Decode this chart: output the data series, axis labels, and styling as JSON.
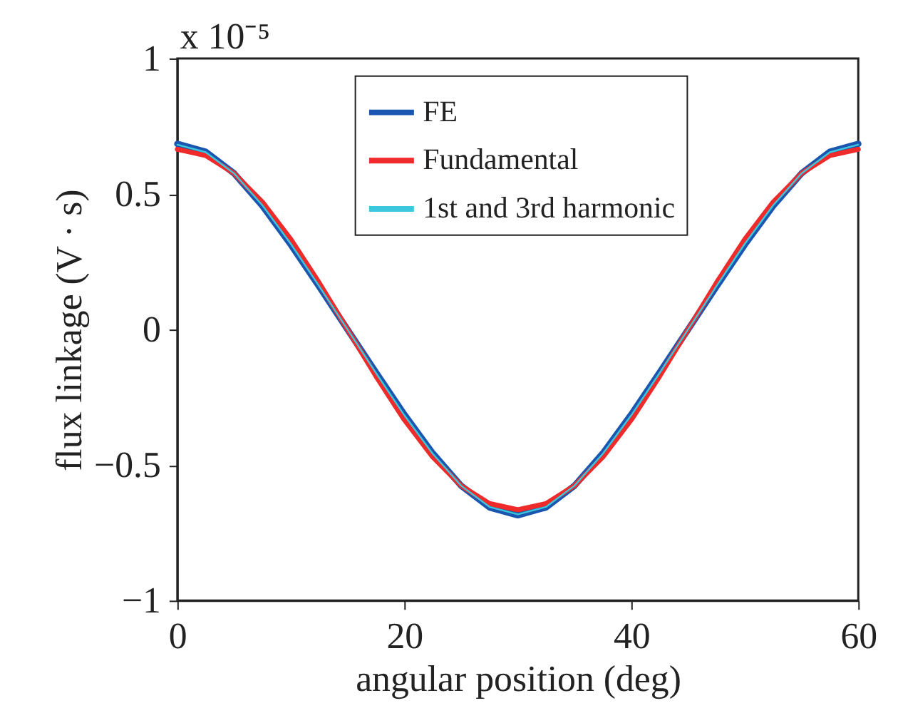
{
  "chart_data": {
    "type": "line",
    "xlabel": "angular position (deg)",
    "ylabel": "flux linkage (V · s)",
    "annotations": [
      "x 10⁻⁵"
    ],
    "x": [
      0,
      2.5,
      5,
      7.5,
      10,
      12.5,
      15,
      17.5,
      20,
      22.5,
      25,
      27.5,
      30,
      32.5,
      35,
      37.5,
      40,
      42.5,
      45,
      47.5,
      50,
      52.5,
      55,
      57.5,
      60
    ],
    "series": [
      {
        "name": "FE",
        "color": "#1a56b0",
        "values": [
          0.685,
          0.656,
          0.576,
          0.456,
          0.313,
          0.158,
          0,
          -0.158,
          -0.313,
          -0.456,
          -0.576,
          -0.656,
          -0.685,
          -0.656,
          -0.576,
          -0.456,
          -0.313,
          -0.158,
          0,
          0.158,
          0.313,
          0.456,
          0.576,
          0.656,
          0.685
        ]
      },
      {
        "name": "Fundamental",
        "color": "#ee2a2a",
        "values": [
          0.665,
          0.642,
          0.576,
          0.47,
          0.333,
          0.172,
          0,
          -0.172,
          -0.333,
          -0.47,
          -0.576,
          -0.642,
          -0.665,
          -0.642,
          -0.576,
          -0.47,
          -0.333,
          -0.172,
          0,
          0.172,
          0.333,
          0.47,
          0.576,
          0.642,
          0.665
        ]
      },
      {
        "name": "1st and 3rd harmonic",
        "color": "#3cc8dc",
        "values": [
          0.682,
          0.654,
          0.576,
          0.458,
          0.316,
          0.16,
          0,
          -0.16,
          -0.316,
          -0.458,
          -0.576,
          -0.654,
          -0.682,
          -0.654,
          -0.576,
          -0.458,
          -0.316,
          -0.16,
          0,
          0.16,
          0.316,
          0.458,
          0.576,
          0.654,
          0.682
        ]
      }
    ],
    "xlim": [
      0,
      60
    ],
    "xticks": [
      0,
      20,
      40,
      60
    ],
    "ylim": [
      -1,
      1
    ],
    "yticks": [
      -1,
      -0.5,
      0,
      0.5,
      1
    ],
    "grid": false,
    "legend": "top",
    "marker": "none",
    "line_style": "solid"
  }
}
